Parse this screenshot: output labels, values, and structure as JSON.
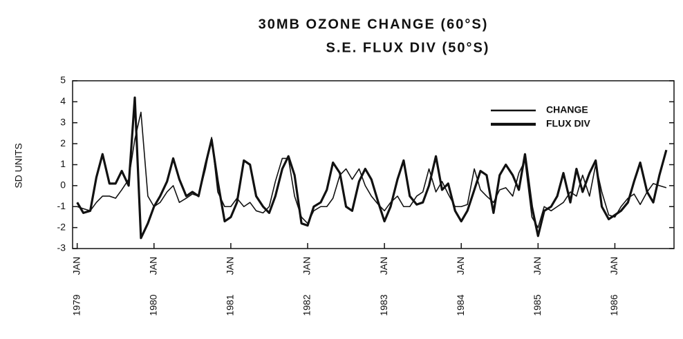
{
  "chart_data": {
    "type": "line",
    "title": "30MB OZONE CHANGE (60°S)",
    "subtitle": "S.E. FLUX DIV (50°S)",
    "y_label": "SD UNITS",
    "xtick_month_label": "JAN",
    "x": [
      1979,
      1979.08,
      1979.17,
      1979.25,
      1979.33,
      1979.42,
      1979.5,
      1979.58,
      1979.67,
      1979.75,
      1979.83,
      1979.92,
      1980,
      1980.08,
      1980.17,
      1980.25,
      1980.33,
      1980.42,
      1980.5,
      1980.58,
      1980.67,
      1980.75,
      1980.83,
      1980.92,
      1981,
      1981.08,
      1981.17,
      1981.25,
      1981.33,
      1981.42,
      1981.5,
      1981.58,
      1981.67,
      1981.75,
      1981.83,
      1981.92,
      1982,
      1982.08,
      1982.17,
      1982.25,
      1982.33,
      1982.42,
      1982.5,
      1982.58,
      1982.67,
      1982.75,
      1982.83,
      1982.92,
      1983,
      1983.08,
      1983.17,
      1983.25,
      1983.33,
      1983.42,
      1983.5,
      1983.58,
      1983.67,
      1983.75,
      1983.83,
      1983.92,
      1984,
      1984.08,
      1984.17,
      1984.25,
      1984.33,
      1984.42,
      1984.5,
      1984.58,
      1984.67,
      1984.75,
      1984.83,
      1984.92,
      1985,
      1985.08,
      1985.17,
      1985.25,
      1985.33,
      1985.42,
      1985.5,
      1985.58,
      1985.67,
      1985.75,
      1985.83,
      1985.92,
      1986,
      1986.08,
      1986.17,
      1986.25,
      1986.33,
      1986.42,
      1986.5,
      1986.58,
      1986.67
    ],
    "series": [
      {
        "name": "CHANGE",
        "color": "#111111",
        "width": 1.6,
        "values": [
          -1.0,
          -1.1,
          -1.2,
          -0.8,
          -0.5,
          -0.5,
          -0.6,
          -0.2,
          0.3,
          2.2,
          3.5,
          -0.5,
          -1.0,
          -0.8,
          -0.3,
          0.0,
          -0.8,
          -0.6,
          -0.4,
          -0.5,
          0.8,
          2.3,
          -0.3,
          -1.0,
          -1.0,
          -0.6,
          -1.0,
          -0.8,
          -1.2,
          -1.3,
          -1.0,
          0.2,
          1.3,
          1.3,
          -0.5,
          -1.5,
          -1.8,
          -1.2,
          -1.0,
          -1.0,
          -0.6,
          0.5,
          0.8,
          0.3,
          0.8,
          0.0,
          -0.5,
          -0.9,
          -1.2,
          -0.8,
          -0.5,
          -1.0,
          -1.0,
          -0.5,
          -0.3,
          0.8,
          -0.3,
          0.2,
          -0.4,
          -1.0,
          -1.0,
          -0.9,
          0.8,
          -0.2,
          -0.5,
          -0.8,
          -0.2,
          -0.1,
          -0.5,
          0.6,
          1.2,
          -1.5,
          -2.0,
          -1.0,
          -1.2,
          -1.0,
          -0.8,
          -0.3,
          -0.5,
          0.5,
          -0.5,
          1.0,
          -0.3,
          -1.4,
          -1.5,
          -1.0,
          -0.6,
          -0.4,
          -0.9,
          -0.3,
          0.1,
          0.0,
          -0.1
        ]
      },
      {
        "name": "FLUX DIV",
        "color": "#111111",
        "width": 3.2,
        "values": [
          -0.8,
          -1.3,
          -1.2,
          0.4,
          1.5,
          0.1,
          0.1,
          0.7,
          0.0,
          4.2,
          -2.5,
          -1.8,
          -1.0,
          -0.5,
          0.2,
          1.3,
          0.3,
          -0.5,
          -0.3,
          -0.5,
          1.0,
          2.2,
          0.2,
          -1.7,
          -1.5,
          -0.8,
          1.2,
          1.0,
          -0.5,
          -1.0,
          -1.3,
          -0.5,
          0.8,
          1.4,
          0.5,
          -1.8,
          -1.9,
          -1.0,
          -0.8,
          -0.2,
          1.1,
          0.6,
          -1.0,
          -1.2,
          0.2,
          0.8,
          0.3,
          -0.8,
          -1.7,
          -1.0,
          0.3,
          1.2,
          -0.5,
          -0.9,
          -0.8,
          0.0,
          1.4,
          -0.2,
          0.1,
          -1.2,
          -1.7,
          -1.2,
          -0.2,
          0.7,
          0.5,
          -1.3,
          0.5,
          1.0,
          0.5,
          -0.2,
          1.5,
          -1.0,
          -2.4,
          -1.2,
          -1.0,
          -0.5,
          0.6,
          -0.8,
          0.8,
          -0.3,
          0.6,
          1.2,
          -1.0,
          -1.6,
          -1.4,
          -1.2,
          -0.8,
          0.2,
          1.1,
          -0.3,
          -0.8,
          0.5,
          1.7
        ]
      }
    ],
    "xlim": [
      1978.94,
      1986.77
    ],
    "xticks": [
      1979,
      1980,
      1981,
      1982,
      1983,
      1984,
      1985,
      1986
    ],
    "ylim": [
      -3,
      5
    ],
    "yticks": [
      -3,
      -2,
      -1,
      0,
      1,
      2,
      3,
      4,
      5
    ],
    "legend": "upper right"
  }
}
